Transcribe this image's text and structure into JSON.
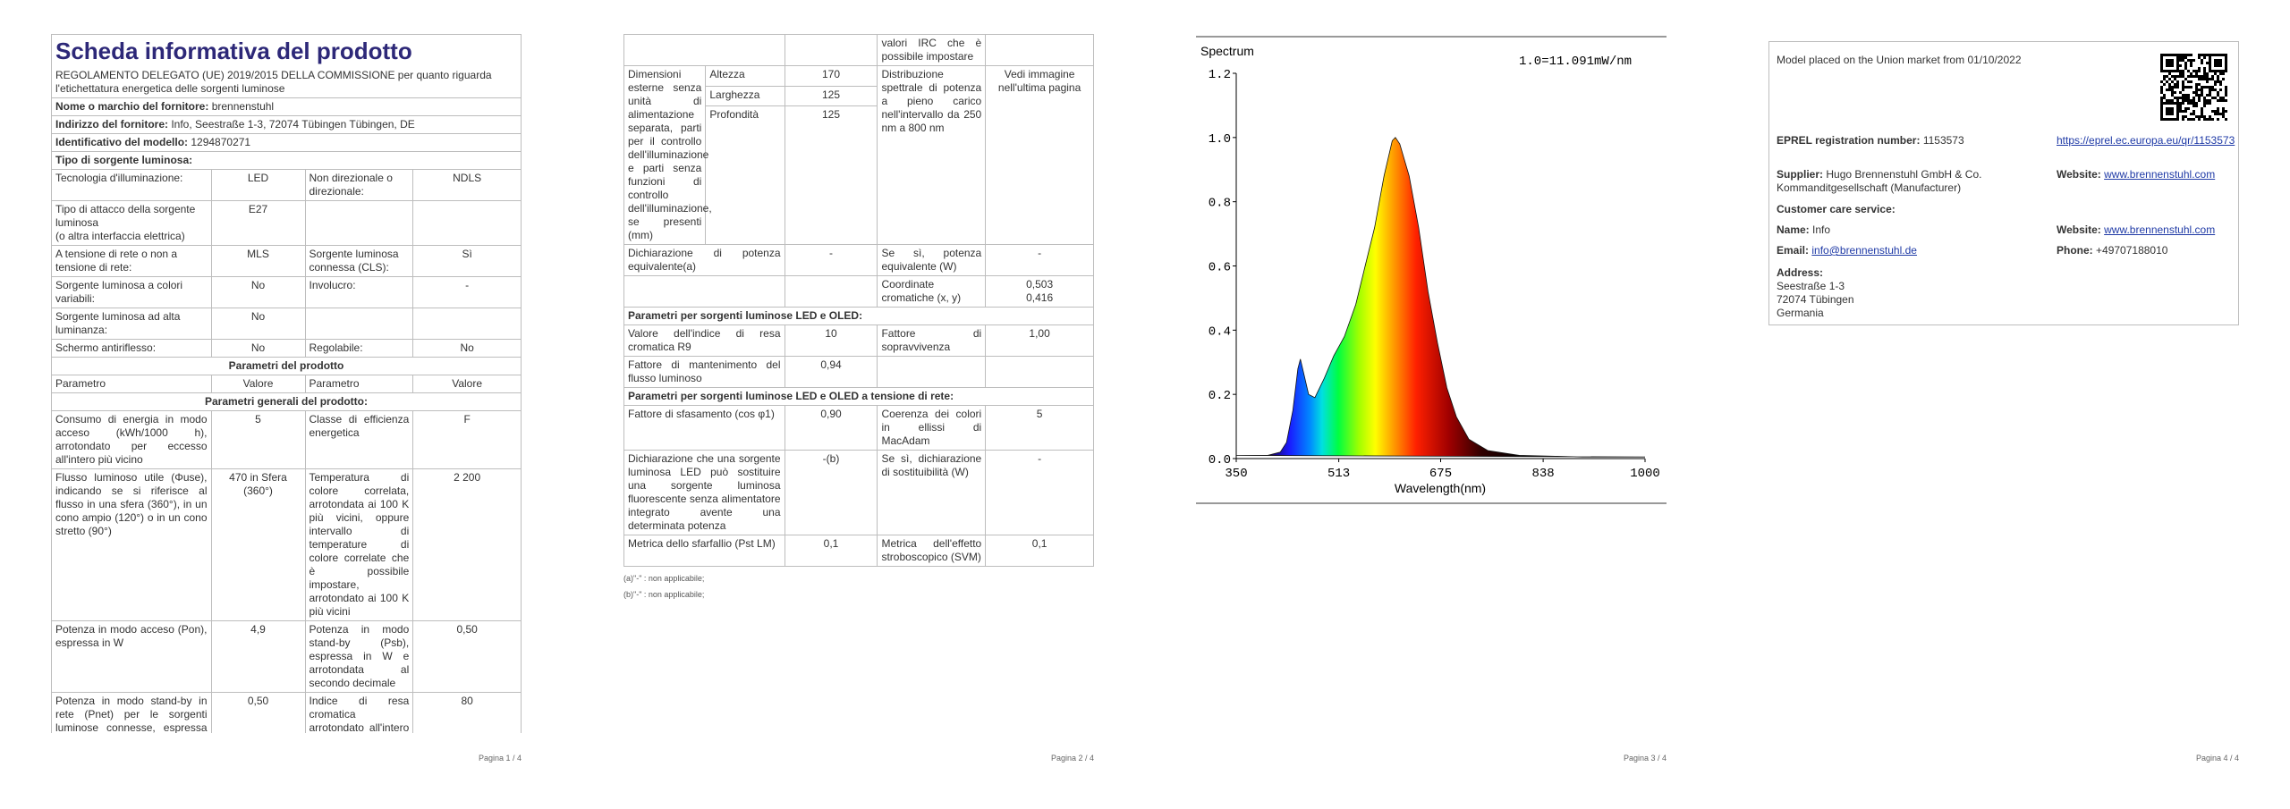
{
  "page1": {
    "title": "Scheda informativa del prodotto",
    "subtitle": "REGOLAMENTO DELEGATO (UE) 2019/2015 DELLA COMMISSIONE per quanto riguarda l'etichettatura energetica delle sorgenti luminose",
    "rows": [
      {
        "label": "Nome o marchio del fornitore:",
        "value": "brennenstuhl"
      },
      {
        "label": "Indirizzo del fornitore:",
        "value": "Info, Seestraße 1-3, 72074 Tübingen Tübingen, DE"
      },
      {
        "label": "Identificativo del modello:",
        "value": "1294870271"
      },
      {
        "heading": "Tipo di sorgente luminosa:"
      },
      {
        "cells": [
          "Tecnologia d'illuminazione:",
          "LED",
          "Non direzionale o direzionale:",
          "NDLS"
        ]
      },
      {
        "cells": [
          [
            "Tipo di attacco della sorgente luminosa",
            "(o altra interfaccia elettrica)"
          ],
          "E27",
          null,
          null
        ]
      },
      {
        "cells": [
          "A tensione di rete o non a tensione di rete:",
          "MLS",
          "Sorgente luminosa connessa (CLS):",
          "Sì"
        ]
      },
      {
        "cells": [
          "Sorgente luminosa a colori variabili:",
          "No",
          "Involucro:",
          "-"
        ]
      },
      {
        "cells": [
          "Sorgente luminosa ad alta luminanza:",
          "No",
          null,
          null
        ]
      },
      {
        "cells": [
          "Schermo antiriflesso:",
          "No",
          "Regolabile:",
          "No"
        ]
      },
      {
        "caption": "Parametri del prodotto"
      },
      {
        "cells": [
          "Parametro",
          "Valore",
          "Parametro",
          "Valore"
        ]
      },
      {
        "caption": "Parametri generali del prodotto:"
      },
      {
        "cells": [
          "Consumo di energia in modo acceso (kWh/1000 h), arrotondato per eccesso all'intero più vicino",
          "5",
          "Classe di efficienza energetica",
          "F"
        ]
      },
      {
        "cells": [
          "Flusso luminoso utile (Φuse), indicando se si riferisce al flusso in una sfera (360°), in un cono ampio (120°) o in un cono stretto (90°)",
          "470 in Sfera (360°)",
          "Temperatura di colore correlata, arrotondata ai 100 K più vicini, oppure intervallo di temperature di colore correlate che è possibile impostare, arrotondato ai 100 K più vicini",
          "2 200"
        ]
      },
      {
        "cells": [
          "Potenza in modo acceso (Pon), espressa in W",
          "4,9",
          "Potenza in modo stand-by (Psb), espressa in W e arrotondata al secondo decimale",
          "0,50"
        ]
      },
      {
        "cells": [
          "Potenza in modo stand-by in rete (Pnet) per le sorgenti luminose connesse, espressa in W e arrotondata al secondo decimale",
          "0,50",
          "Indice di resa cromatica arrotondato all'intero più vicino, oppure intervallo di",
          "80"
        ]
      }
    ],
    "footer": "Pagina 1 / 4"
  },
  "page2": {
    "rows": [
      {
        "cells": [
          null,
          null,
          "valori IRC che è possibile impostare",
          null
        ]
      },
      {
        "label": "Dimensioni esterne senza unità di alimentazione separata, parti per il controllo dell'illuminazione e parti senza funzioni di controllo dell'illuminazione, se presenti (mm)",
        "dimensions": [
          [
            "Altezza",
            "170"
          ],
          [
            "Larghezza",
            "125"
          ],
          [
            "Profondità",
            "125"
          ]
        ],
        "cells": [
          "Distribuzione spettrale di potenza a pieno carico nell'intervallo da 250 nm a 800 nm",
          "Vedi immagine nell'ultima pagina"
        ]
      },
      {
        "cells": [
          "Dichiarazione di potenza equivalente(a)",
          "-",
          "Se sì, potenza equivalente (W)",
          "-"
        ]
      },
      {
        "cells": [
          null,
          null,
          "Coordinate cromatiche (x, y)",
          [
            "0,503",
            "0,416"
          ]
        ]
      },
      {
        "heading": "Parametri per sorgenti luminose LED e OLED:"
      },
      {
        "cells": [
          "Valore dell'indice di resa cromatica R9",
          "10",
          "Fattore di sopravvivenza",
          "1,00"
        ]
      },
      {
        "cells": [
          "Fattore di mantenimento del flusso luminoso",
          "0,94",
          null,
          null
        ]
      },
      {
        "heading": "Parametri per sorgenti luminose LED e OLED a tensione di rete:"
      },
      {
        "cells": [
          "Fattore di sfasamento (cos φ1)",
          "0,90",
          "Coerenza dei colori in ellissi di MacAdam",
          "5"
        ]
      },
      {
        "cells": [
          "Dichiarazione che una sorgente luminosa LED può sostituire una sorgente luminosa fluorescente senza alimentatore integrato avente una determinata potenza",
          "-(b)",
          "Se sì, dichiarazione di sostituibilità (W)",
          "-"
        ]
      },
      {
        "cells": [
          "Metrica dello sfarfallio (Pst LM)",
          "0,1",
          "Metrica dell'effetto stroboscopico (SVM)",
          "0,1"
        ]
      }
    ],
    "notes": [
      "(a)\"-\" : non applicabile;",
      "(b)\"-\" : non applicabile;"
    ],
    "footer": "Pagina 2 / 4"
  },
  "page3": {
    "chart_data": {
      "type": "area",
      "title": "Spectrum",
      "annotation": "1.0=11.091mW/nm",
      "x_label": "Wavelength(nm)",
      "x": [
        350,
        400,
        420,
        430,
        440,
        448,
        452,
        458,
        465,
        475,
        490,
        505,
        522,
        540,
        555,
        570,
        585,
        598,
        603,
        610,
        625,
        640,
        655,
        670,
        685,
        700,
        720,
        750,
        800,
        900,
        1000
      ],
      "values": [
        0.01,
        0.01,
        0.02,
        0.05,
        0.15,
        0.28,
        0.31,
        0.26,
        0.2,
        0.19,
        0.25,
        0.32,
        0.38,
        0.48,
        0.6,
        0.72,
        0.88,
        0.99,
        1.0,
        0.98,
        0.88,
        0.72,
        0.52,
        0.36,
        0.22,
        0.13,
        0.06,
        0.025,
        0.01,
        0.005,
        0.005
      ],
      "xlim": [
        350,
        1000
      ],
      "xticks": [
        350,
        513,
        675,
        838,
        1000
      ],
      "ylim": [
        0,
        1.2
      ],
      "yticks": [
        {
          "value": 0,
          "label": "0.0"
        },
        0.2,
        0.4,
        0.6,
        0.8,
        {
          "value": 1,
          "label": "1.0"
        },
        1.2
      ]
    },
    "footer": "Pagina 3 / 4"
  },
  "page4": {
    "market": "Model placed on the Union market from 01/10/2022",
    "eprel_label": "EPREL registration number:",
    "eprel_value": "1153573",
    "eprel_link": "https://eprel.ec.europa.eu/qr/1153573",
    "supplier_label": "Supplier:",
    "supplier_value": "Hugo Brennenstuhl GmbH & Co. Kommanditgesellschaft (Manufacturer)",
    "website_label": "Website:",
    "website_value": "www.brennenstuhl.com",
    "care_heading": "Customer care service:",
    "name_label": "Name:",
    "name_value": "Info",
    "care_website_label": "Website:",
    "care_website_value": "www.brennenstuhl.com",
    "email_label": "Email:",
    "email_value": "info@brennenstuhl.de",
    "phone_label": "Phone:",
    "phone_value": "+49707188010",
    "address_label": "Address:",
    "address_lines": [
      "Seestraße 1-3",
      "72074 Tübingen",
      "Germania"
    ],
    "footer": "Pagina 4 / 4"
  }
}
